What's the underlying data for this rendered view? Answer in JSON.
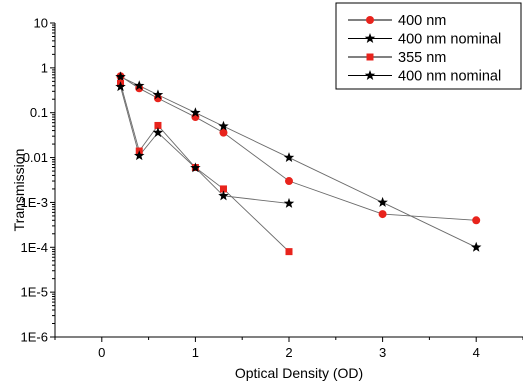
{
  "chart_data": {
    "type": "scatter",
    "xlabel": "Optical Density (OD)",
    "ylabel": "Transmission",
    "xlim": [
      -0.5,
      4.5
    ],
    "ylim": [
      1e-06,
      10
    ],
    "yscale": "log",
    "xticks": [
      0,
      1,
      2,
      3,
      4
    ],
    "xtick_labels": [
      "0",
      "1",
      "2",
      "3",
      "4"
    ],
    "yticks": [
      1e-06,
      1e-05,
      0.0001,
      0.001,
      0.01,
      0.1,
      1,
      10
    ],
    "ytick_labels": [
      "1E-6",
      "1E-5",
      "1E-4",
      "1E-3",
      "0.01",
      "0.1",
      "1",
      "10"
    ],
    "grid": false,
    "legend_position": "top-right",
    "series": [
      {
        "name": "400 nm",
        "marker": "circle",
        "color": "#e8231c",
        "line_color": "#6b6b6b",
        "x": [
          0.2,
          0.4,
          0.6,
          1.0,
          1.3,
          2.0,
          3.0,
          4.0
        ],
        "y": [
          0.65,
          0.35,
          0.21,
          0.08,
          0.036,
          0.003,
          0.00055,
          0.0004
        ]
      },
      {
        "name": "400 nm nominal",
        "marker": "star",
        "color": "#000000",
        "line_color": "#6b6b6b",
        "x": [
          0.2,
          0.4,
          0.6,
          1.0,
          1.3,
          2.0,
          3.0,
          4.0
        ],
        "y": [
          0.63,
          0.4,
          0.25,
          0.1,
          0.05,
          0.01,
          0.001,
          0.0001
        ]
      },
      {
        "name": "355 nm",
        "marker": "square",
        "color": "#e8231c",
        "line_color": "#6b6b6b",
        "x": [
          0.2,
          0.4,
          0.6,
          1.0,
          1.3,
          2.0
        ],
        "y": [
          0.45,
          0.014,
          0.052,
          0.006,
          0.002,
          8e-05
        ]
      },
      {
        "name": "400 nm nominal",
        "marker": "star",
        "color": "#000000",
        "line_color": "#6b6b6b",
        "x": [
          0.2,
          0.4,
          0.6,
          1.0,
          1.3,
          2.0
        ],
        "y": [
          0.38,
          0.011,
          0.036,
          0.0059,
          0.0014,
          0.00095
        ]
      }
    ]
  }
}
